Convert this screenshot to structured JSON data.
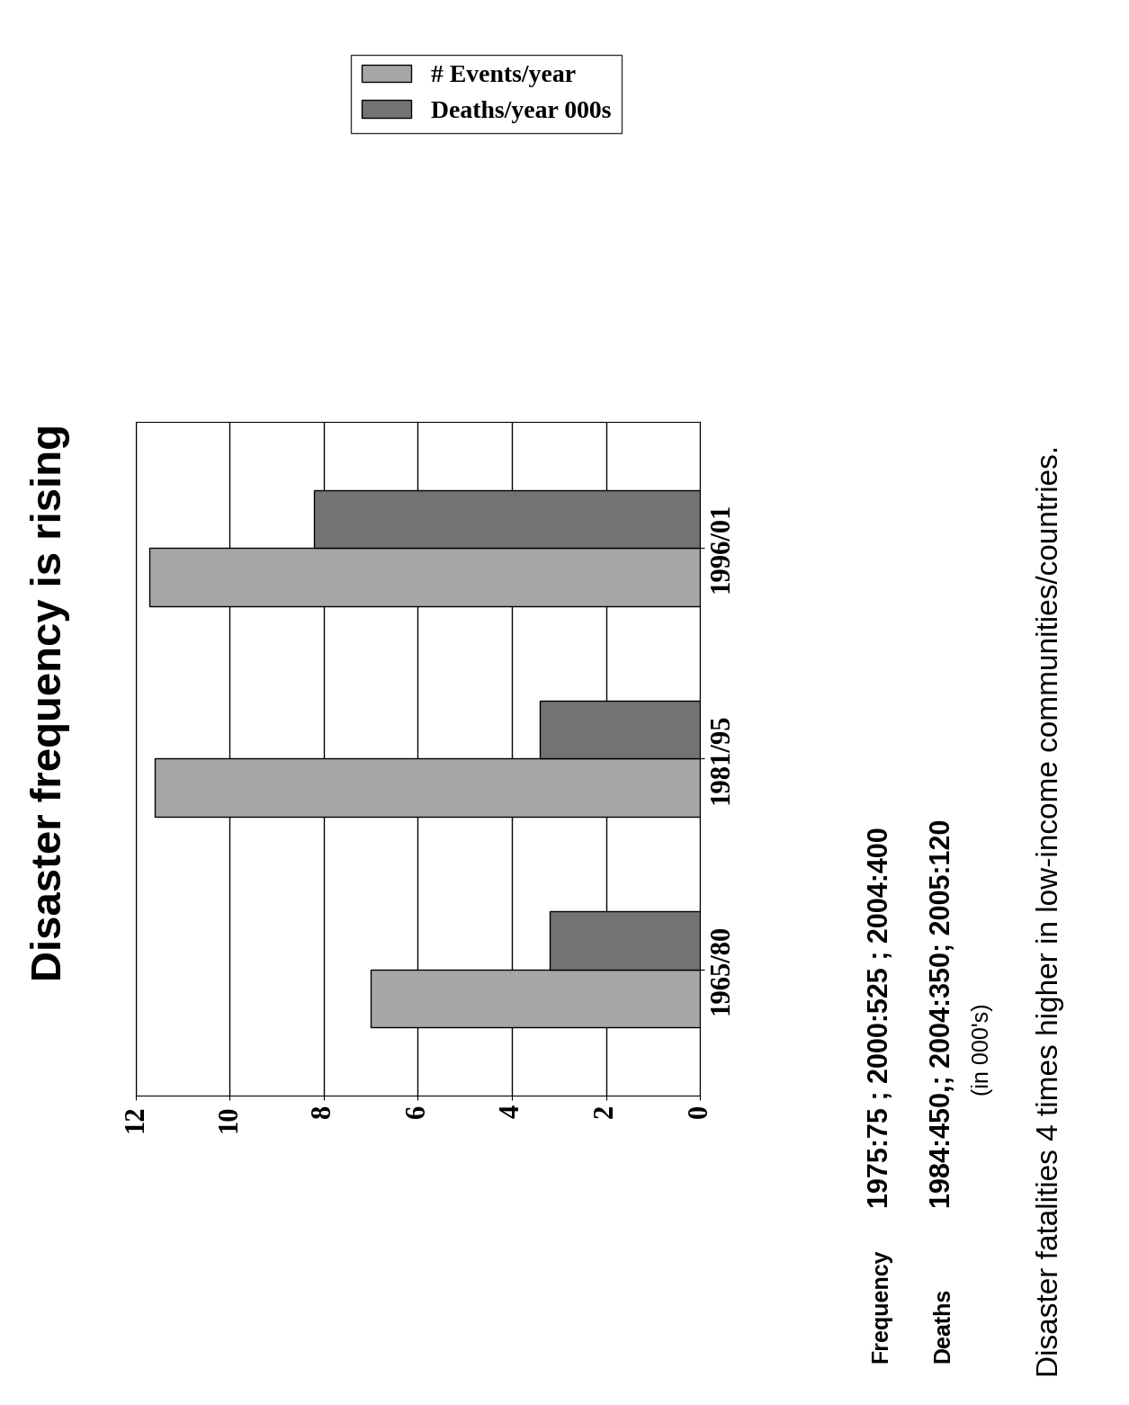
{
  "chart_data": {
    "type": "bar",
    "title": "Disaster frequency is rising",
    "orientation": "horizontal",
    "categories": [
      "1965/80",
      "1981/95",
      "1996/01"
    ],
    "series": [
      {
        "name": "# Events/year",
        "color": "#a6a6a6",
        "values": [
          7.0,
          11.6,
          11.7
        ]
      },
      {
        "name": "Deaths/year 000s",
        "color": "#737373",
        "values": [
          3.2,
          3.4,
          8.2
        ]
      }
    ],
    "xlim": [
      0,
      12
    ],
    "xticks": [
      0,
      2,
      4,
      6,
      8,
      10,
      12
    ],
    "grid": true,
    "legend": "upper left",
    "annotations": [
      "Frequency",
      "1975:75 ; 2000:525 ; 2004:400",
      "Deaths",
      "1984:450,; 2004:350; 2005:120",
      "(in 000's)",
      "Disaster fatalities 4 times higher in low-income communities/countries."
    ]
  }
}
